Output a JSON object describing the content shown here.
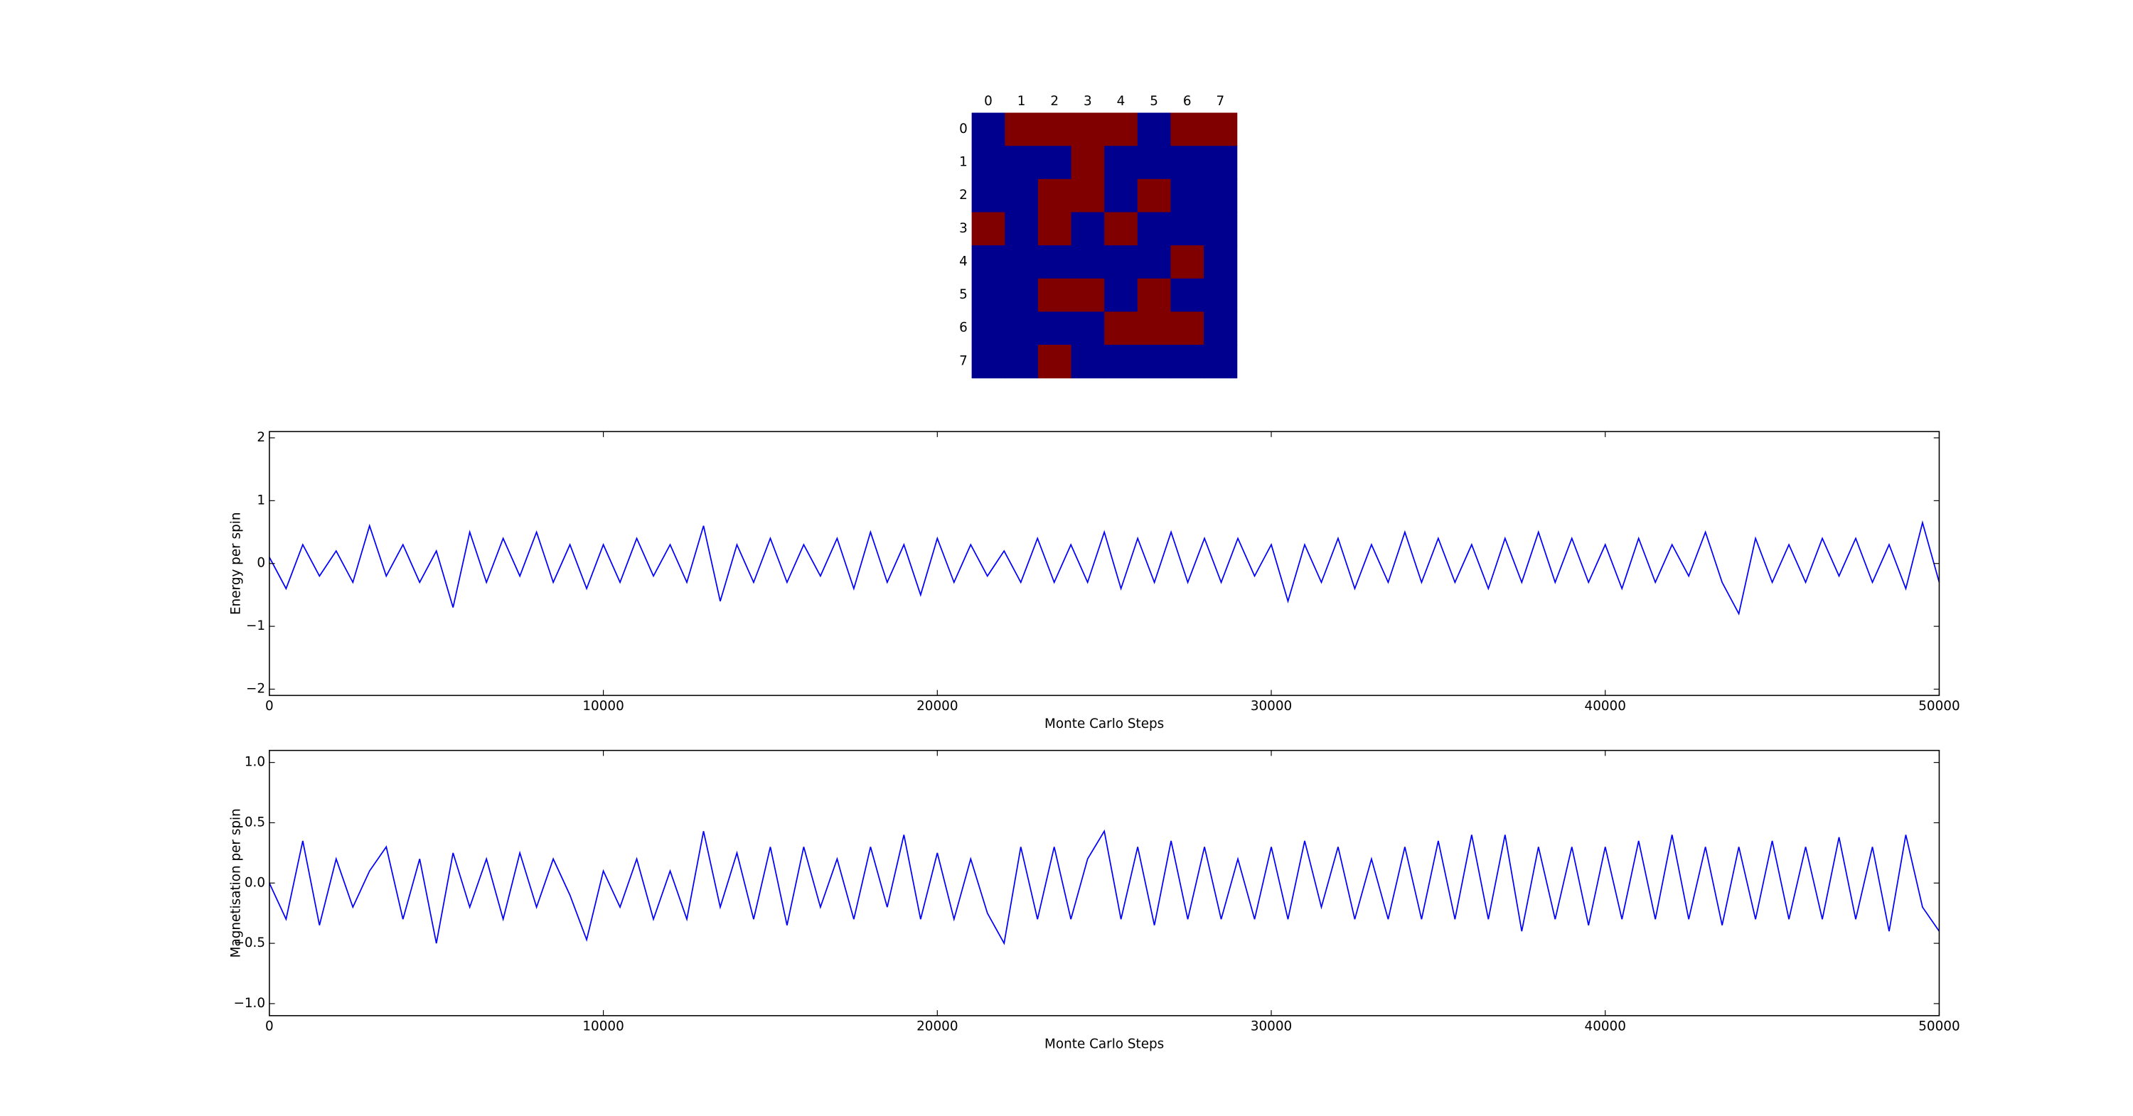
{
  "chart_data": [
    {
      "type": "heatmap",
      "x_categories": [
        "0",
        "1",
        "2",
        "3",
        "4",
        "5",
        "6",
        "7"
      ],
      "y_categories": [
        "0",
        "1",
        "2",
        "3",
        "4",
        "5",
        "6",
        "7"
      ],
      "values": [
        [
          -1,
          1,
          1,
          1,
          1,
          -1,
          1,
          1
        ],
        [
          -1,
          -1,
          -1,
          1,
          -1,
          -1,
          -1,
          -1
        ],
        [
          -1,
          -1,
          1,
          1,
          -1,
          1,
          -1,
          -1
        ],
        [
          1,
          -1,
          1,
          -1,
          1,
          -1,
          -1,
          -1
        ],
        [
          -1,
          -1,
          -1,
          -1,
          -1,
          -1,
          1,
          -1
        ],
        [
          -1,
          -1,
          1,
          1,
          -1,
          1,
          -1,
          -1
        ],
        [
          -1,
          -1,
          -1,
          -1,
          1,
          1,
          1,
          -1
        ],
        [
          -1,
          -1,
          1,
          -1,
          -1,
          -1,
          -1,
          -1
        ]
      ],
      "colors": [
        "#00008f",
        "#800000"
      ]
    },
    {
      "type": "line",
      "xlabel": "Monte Carlo Steps",
      "ylabel": "Energy per spin",
      "x": [
        0,
        500,
        1000,
        1500,
        2000,
        2500,
        3000,
        3500,
        4000,
        4500,
        5000,
        5500,
        6000,
        6500,
        7000,
        7500,
        8000,
        8500,
        9000,
        9500,
        10000,
        10500,
        11000,
        11500,
        12000,
        12500,
        13000,
        13500,
        14000,
        14500,
        15000,
        15500,
        16000,
        16500,
        17000,
        17500,
        18000,
        18500,
        19000,
        19500,
        20000,
        20500,
        21000,
        21500,
        22000,
        22500,
        23000,
        23500,
        24000,
        24500,
        25000,
        25500,
        26000,
        26500,
        27000,
        27500,
        28000,
        28500,
        29000,
        29500,
        30000,
        30500,
        31000,
        31500,
        32000,
        32500,
        33000,
        33500,
        34000,
        34500,
        35000,
        35500,
        36000,
        36500,
        37000,
        37500,
        38000,
        38500,
        39000,
        39500,
        40000,
        40500,
        41000,
        41500,
        42000,
        42500,
        43000,
        43500,
        44000,
        44500,
        45000,
        45500,
        46000,
        46500,
        47000,
        47500,
        48000,
        48500,
        49000,
        49500,
        50000
      ],
      "series": [
        {
          "color": "#0000ff",
          "values": [
            0.1,
            -0.4,
            0.3,
            -0.2,
            0.2,
            -0.3,
            0.6,
            -0.2,
            0.3,
            -0.3,
            0.2,
            -0.7,
            0.5,
            -0.3,
            0.4,
            -0.2,
            0.5,
            -0.3,
            0.3,
            -0.4,
            0.3,
            -0.3,
            0.4,
            -0.2,
            0.3,
            -0.3,
            0.6,
            -0.6,
            0.3,
            -0.3,
            0.4,
            -0.3,
            0.3,
            -0.2,
            0.4,
            -0.4,
            0.5,
            -0.3,
            0.3,
            -0.5,
            0.4,
            -0.3,
            0.3,
            -0.2,
            0.2,
            -0.3,
            0.4,
            -0.3,
            0.3,
            -0.3,
            0.5,
            -0.4,
            0.4,
            -0.3,
            0.5,
            -0.3,
            0.4,
            -0.3,
            0.4,
            -0.2,
            0.3,
            -0.6,
            0.3,
            -0.3,
            0.4,
            -0.4,
            0.3,
            -0.3,
            0.5,
            -0.3,
            0.4,
            -0.3,
            0.3,
            -0.4,
            0.4,
            -0.3,
            0.5,
            -0.3,
            0.4,
            -0.3,
            0.3,
            -0.4,
            0.4,
            -0.3,
            0.3,
            -0.2,
            0.5,
            -0.3,
            -0.8,
            0.4,
            -0.3,
            0.3,
            -0.3,
            0.4,
            -0.2,
            0.4,
            -0.3,
            0.3,
            -0.4,
            0.65,
            -0.3
          ]
        }
      ],
      "xlim": [
        0,
        50000
      ],
      "ylim": [
        -2.1,
        2.1
      ],
      "xticks": [
        0,
        10000,
        20000,
        30000,
        40000,
        50000
      ],
      "yticks": [
        {
          "value": -2,
          "label": "−2"
        },
        {
          "value": -1,
          "label": "−1"
        },
        0,
        1,
        2
      ]
    },
    {
      "type": "line",
      "xlabel": "Monte Carlo Steps",
      "ylabel": "Magnetisation per spin",
      "x": [
        0,
        500,
        1000,
        1500,
        2000,
        2500,
        3000,
        3500,
        4000,
        4500,
        5000,
        5500,
        6000,
        6500,
        7000,
        7500,
        8000,
        8500,
        9000,
        9500,
        10000,
        10500,
        11000,
        11500,
        12000,
        12500,
        13000,
        13500,
        14000,
        14500,
        15000,
        15500,
        16000,
        16500,
        17000,
        17500,
        18000,
        18500,
        19000,
        19500,
        20000,
        20500,
        21000,
        21500,
        22000,
        22500,
        23000,
        23500,
        24000,
        24500,
        25000,
        25500,
        26000,
        26500,
        27000,
        27500,
        28000,
        28500,
        29000,
        29500,
        30000,
        30500,
        31000,
        31500,
        32000,
        32500,
        33000,
        33500,
        34000,
        34500,
        35000,
        35500,
        36000,
        36500,
        37000,
        37500,
        38000,
        38500,
        39000,
        39500,
        40000,
        40500,
        41000,
        41500,
        42000,
        42500,
        43000,
        43500,
        44000,
        44500,
        45000,
        45500,
        46000,
        46500,
        47000,
        47500,
        48000,
        48500,
        49000,
        49500,
        50000
      ],
      "series": [
        {
          "color": "#0000ff",
          "values": [
            0.0,
            -0.3,
            0.35,
            -0.35,
            0.2,
            -0.2,
            0.1,
            0.3,
            -0.3,
            0.2,
            -0.5,
            0.25,
            -0.2,
            0.2,
            -0.3,
            0.25,
            -0.2,
            0.2,
            -0.1,
            -0.47,
            0.1,
            -0.2,
            0.2,
            -0.3,
            0.1,
            -0.3,
            0.43,
            -0.2,
            0.25,
            -0.3,
            0.3,
            -0.35,
            0.3,
            -0.2,
            0.2,
            -0.3,
            0.3,
            -0.2,
            0.4,
            -0.3,
            0.25,
            -0.3,
            0.2,
            -0.25,
            -0.5,
            0.3,
            -0.3,
            0.3,
            -0.3,
            0.2,
            0.43,
            -0.3,
            0.3,
            -0.35,
            0.35,
            -0.3,
            0.3,
            -0.3,
            0.2,
            -0.3,
            0.3,
            -0.3,
            0.35,
            -0.2,
            0.3,
            -0.3,
            0.2,
            -0.3,
            0.3,
            -0.3,
            0.35,
            -0.3,
            0.4,
            -0.3,
            0.4,
            -0.4,
            0.3,
            -0.3,
            0.3,
            -0.35,
            0.3,
            -0.3,
            0.35,
            -0.3,
            0.4,
            -0.3,
            0.3,
            -0.35,
            0.3,
            -0.3,
            0.35,
            -0.3,
            0.3,
            -0.3,
            0.38,
            -0.3,
            0.3,
            -0.4,
            0.4,
            -0.2,
            -0.4
          ]
        }
      ],
      "xlim": [
        0,
        50000
      ],
      "ylim": [
        -1.1,
        1.1
      ],
      "xticks": [
        0,
        10000,
        20000,
        30000,
        40000,
        50000
      ],
      "yticks": [
        {
          "value": -1,
          "label": "−1.0"
        },
        {
          "value": -0.5,
          "label": "−0.5"
        },
        {
          "value": 0,
          "label": "0.0"
        },
        {
          "value": 0.5,
          "label": "0.5"
        },
        {
          "value": 1,
          "label": "1.0"
        }
      ]
    }
  ]
}
